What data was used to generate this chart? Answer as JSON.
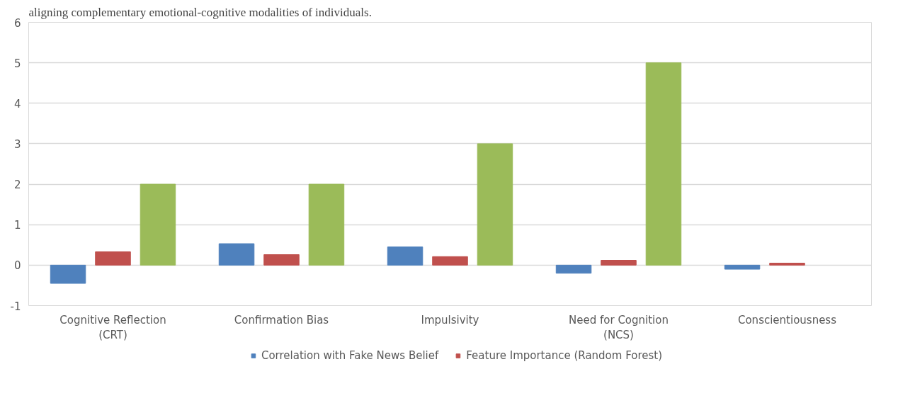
{
  "chart_data": {
    "type": "bar",
    "annotations": [
      "aligning complementary emotional-cognitive modalities of individuals."
    ],
    "categories": [
      "Cognitive Reflection (CRT)",
      "Confirmation Bias",
      "Impulsivity",
      "Need for Cognition (NCS)",
      "Conscientiousness"
    ],
    "series": [
      {
        "name": "Correlation with Fake News Belief",
        "color": "#4f81bd",
        "values": [
          -0.45,
          0.53,
          0.45,
          -0.2,
          -0.1
        ]
      },
      {
        "name": "Feature Importance (Random Forest)",
        "color": "#c0504d",
        "values": [
          0.33,
          0.26,
          0.21,
          0.12,
          0.05
        ]
      },
      {
        "color": "#9bbb59",
        "values": [
          2,
          2,
          3,
          5,
          null
        ]
      }
    ],
    "ylim": [
      -1,
      6
    ],
    "yticks": [
      -1,
      0,
      1,
      2,
      3,
      4,
      5,
      6
    ],
    "grid": "y",
    "legend": "bottom"
  }
}
